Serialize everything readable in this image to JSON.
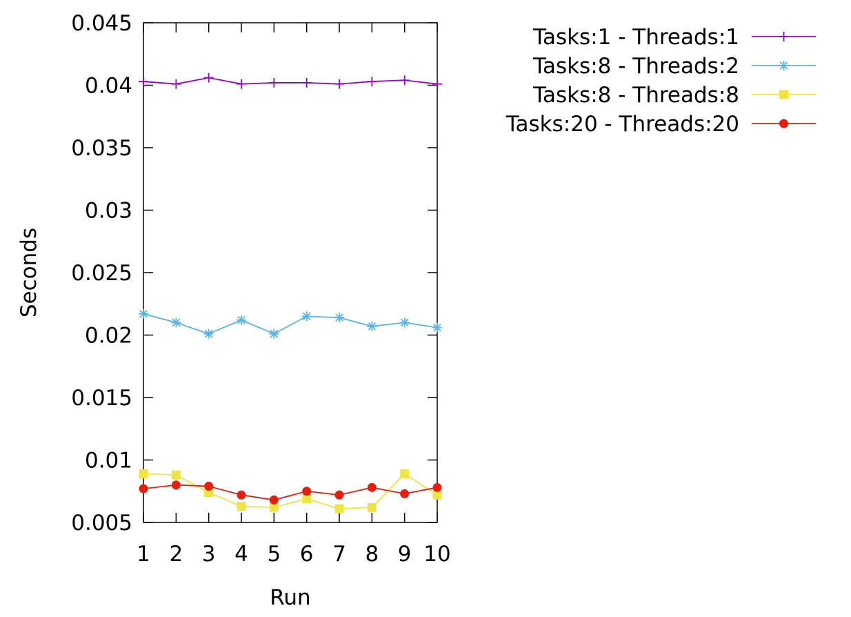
{
  "chart_data": {
    "type": "line",
    "title": "",
    "xlabel": "Run",
    "ylabel": "Seconds",
    "x": [
      1,
      2,
      3,
      4,
      5,
      6,
      7,
      8,
      9,
      10
    ],
    "xlim": [
      1,
      10
    ],
    "ylim": [
      0.005,
      0.045
    ],
    "xticks": [
      "1",
      "2",
      "3",
      "4",
      "5",
      "6",
      "7",
      "8",
      "9",
      "10"
    ],
    "yticks": [
      "0.005",
      "0.01",
      "0.015",
      "0.02",
      "0.025",
      "0.03",
      "0.035",
      "0.04",
      "0.045"
    ],
    "grid": false,
    "legend_position": "top-right outside plot",
    "series": [
      {
        "name": "Tasks:1 - Threads:1",
        "color": "#9400d3",
        "marker": "plus",
        "values": [
          0.0403,
          0.0401,
          0.0406,
          0.0401,
          0.0402,
          0.0402,
          0.0401,
          0.0403,
          0.0404,
          0.0401
        ]
      },
      {
        "name": "Tasks:8 - Threads:2",
        "color": "#56b4e9",
        "marker": "asterisk",
        "values": [
          0.0217,
          0.021,
          0.0201,
          0.0212,
          0.0201,
          0.0215,
          0.0214,
          0.0207,
          0.021,
          0.0206
        ]
      },
      {
        "name": "Tasks:8 - Threads:8",
        "color": "#f0e442",
        "marker": "square",
        "values": [
          0.0089,
          0.0088,
          0.0074,
          0.0063,
          0.0062,
          0.0069,
          0.0061,
          0.0062,
          0.0089,
          0.0072
        ]
      },
      {
        "name": "Tasks:20 - Threads:20",
        "color": "#e51e10",
        "marker": "circle",
        "values": [
          0.0077,
          0.008,
          0.0079,
          0.0072,
          0.0068,
          0.0075,
          0.0072,
          0.0078,
          0.0073,
          0.0078
        ]
      }
    ]
  }
}
